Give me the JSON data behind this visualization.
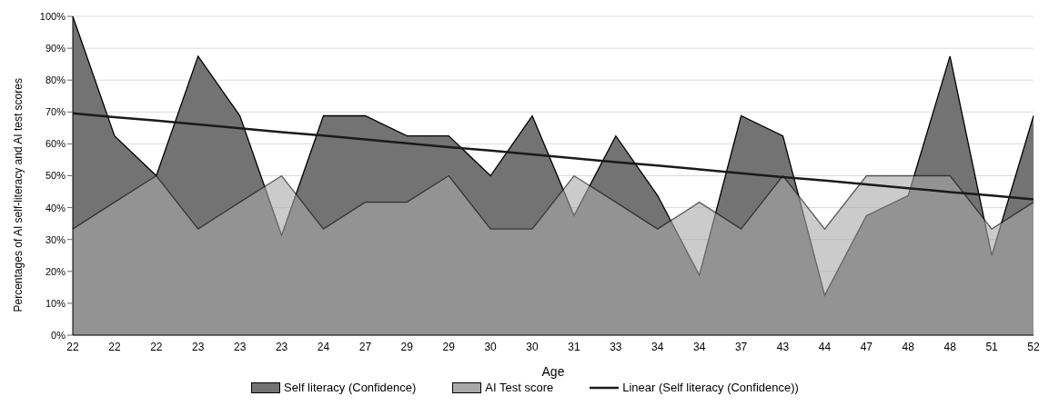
{
  "chart_data": {
    "type": "area",
    "xlabel": "Age",
    "ylabel": "Percentages of AI self-literacy and AI test scores",
    "categories": [
      "22",
      "22",
      "22",
      "23",
      "23",
      "23",
      "24",
      "27",
      "29",
      "29",
      "30",
      "30",
      "31",
      "33",
      "34",
      "34",
      "37",
      "43",
      "44",
      "47",
      "48",
      "48",
      "51",
      "52"
    ],
    "series": [
      {
        "name": "Self literacy (Confidence)",
        "color": "#737373",
        "values": [
          100,
          62.5,
          50,
          87.5,
          68.8,
          31.3,
          68.8,
          68.8,
          62.5,
          62.5,
          50,
          68.8,
          37.5,
          62.5,
          43.8,
          18.8,
          68.8,
          62.5,
          12.5,
          37.5,
          43.8,
          87.5,
          25,
          68.8
        ]
      },
      {
        "name": "AI Test score",
        "color": "#a8a8a8",
        "values": [
          33.3,
          41.7,
          50,
          33.3,
          41.7,
          50,
          33.3,
          41.7,
          41.7,
          50,
          33.3,
          33.3,
          50,
          41.7,
          33.3,
          41.7,
          33.3,
          50,
          33.3,
          50,
          50,
          50,
          33.3,
          41.7
        ]
      },
      {
        "name": "Linear (Self literacy (Confidence))",
        "type": "line",
        "color": "#1a1a1a",
        "values": [
          69.6,
          68.4,
          67.3,
          66.1,
          64.9,
          63.7,
          62.6,
          61.4,
          60.2,
          59.0,
          57.9,
          56.7,
          55.5,
          54.3,
          53.2,
          52.0,
          50.8,
          49.6,
          48.5,
          47.3,
          46.1,
          44.9,
          43.8,
          42.6
        ]
      }
    ],
    "ylim": [
      0,
      100
    ],
    "yticks": [
      {
        "value": 0,
        "label": "0%"
      },
      {
        "value": 10,
        "label": "10%"
      },
      {
        "value": 20,
        "label": "20%"
      },
      {
        "value": 30,
        "label": "30%"
      },
      {
        "value": 40,
        "label": "40%"
      },
      {
        "value": 50,
        "label": "50%"
      },
      {
        "value": 60,
        "label": "60%"
      },
      {
        "value": 70,
        "label": "70%"
      },
      {
        "value": 80,
        "label": "80%"
      },
      {
        "value": 90,
        "label": "90%"
      },
      {
        "value": 100,
        "label": "100%"
      }
    ],
    "grid": "y",
    "legend": "bottom"
  }
}
